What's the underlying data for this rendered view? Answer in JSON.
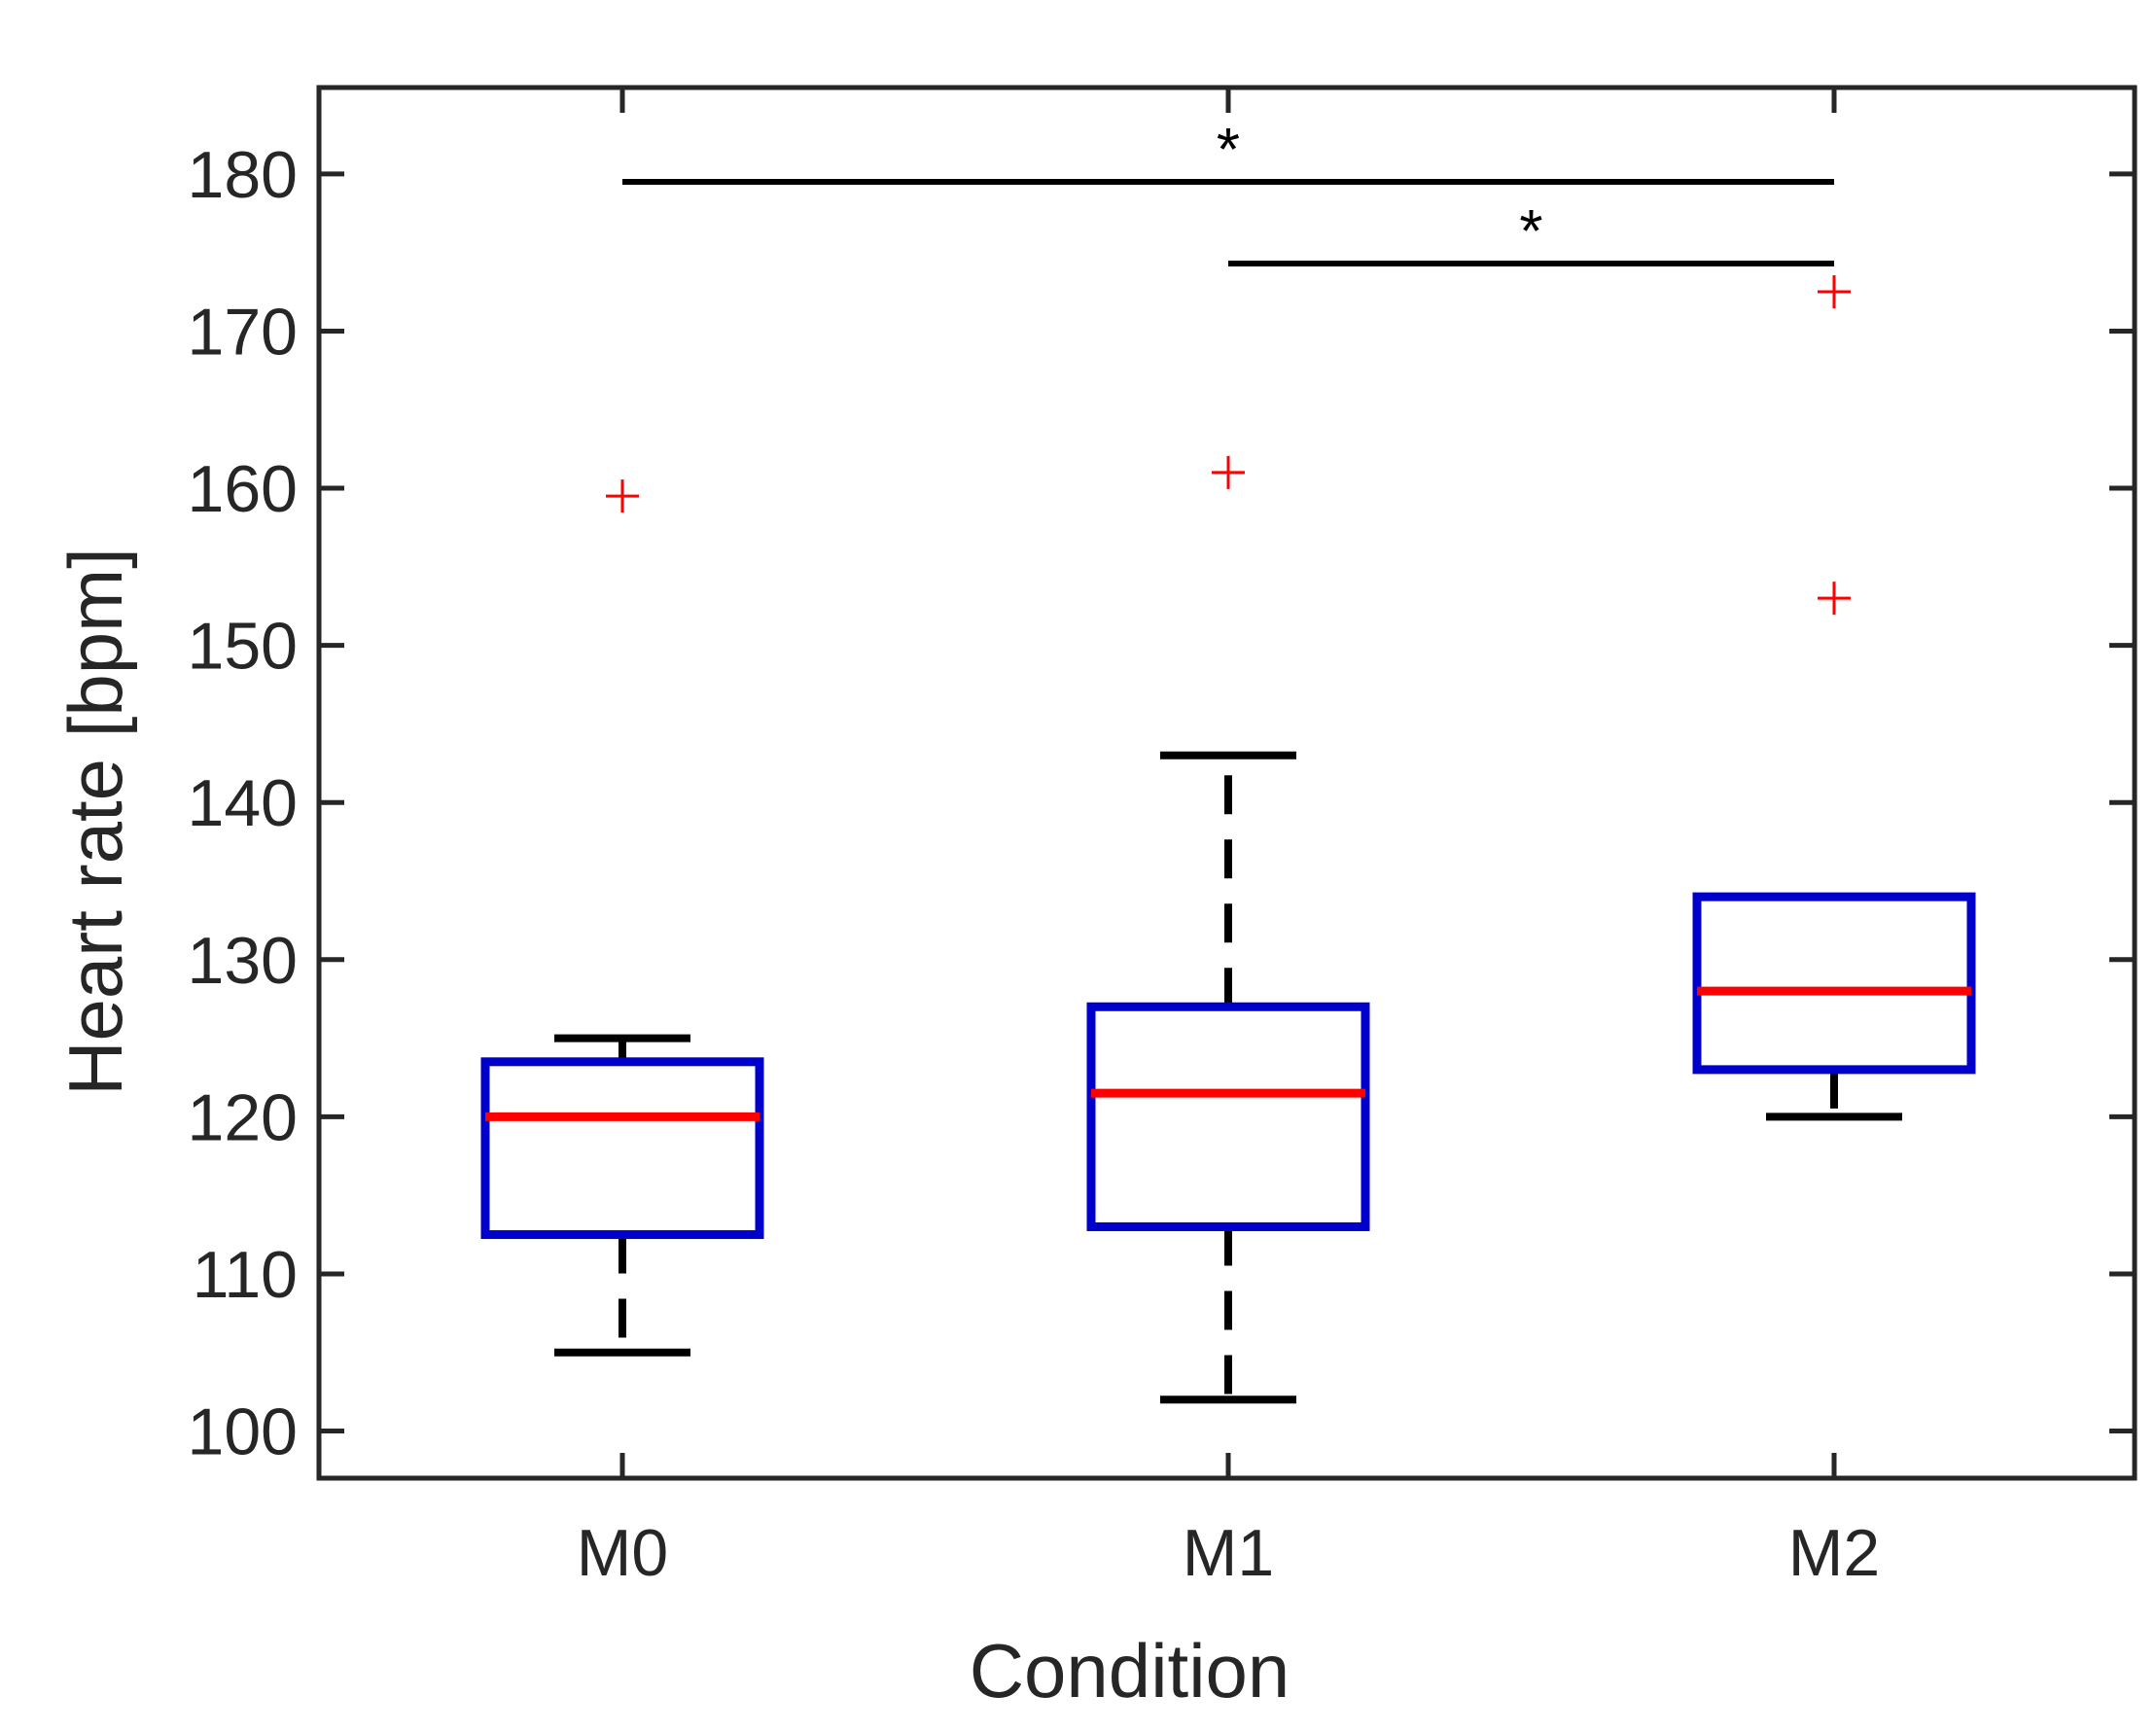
{
  "chart_data": {
    "type": "boxplot",
    "title": "",
    "xlabel": "Condition",
    "ylabel": "Heart rate [bpm]",
    "ylim": [
      97,
      185.5
    ],
    "yticks": [
      100,
      110,
      120,
      130,
      140,
      150,
      160,
      170,
      180
    ],
    "categories": [
      "M0",
      "M1",
      "M2"
    ],
    "boxes": [
      {
        "name": "M0",
        "whisker_low": 105,
        "q1": 112.5,
        "median": 120,
        "q3": 123.5,
        "whisker_high": 125,
        "outliers": [
          159.5
        ]
      },
      {
        "name": "M1",
        "whisker_low": 102,
        "q1": 113,
        "median": 121.5,
        "q3": 127,
        "whisker_high": 143,
        "outliers": [
          161
        ]
      },
      {
        "name": "M2",
        "whisker_low": 120,
        "q1": 123,
        "median": 128,
        "q3": 134,
        "whisker_high": 134,
        "outliers": [
          153,
          172.5
        ]
      }
    ],
    "significance": [
      {
        "from": "M0",
        "to": "M2",
        "y": 179.5,
        "label": "*"
      },
      {
        "from": "M1",
        "to": "M2",
        "y": 174.3,
        "label": "*"
      }
    ],
    "colors": {
      "box": "#0000cc",
      "median": "#ff0000",
      "whisker": "#000000",
      "outlier": "#ff0000",
      "axis": "#262626"
    }
  }
}
